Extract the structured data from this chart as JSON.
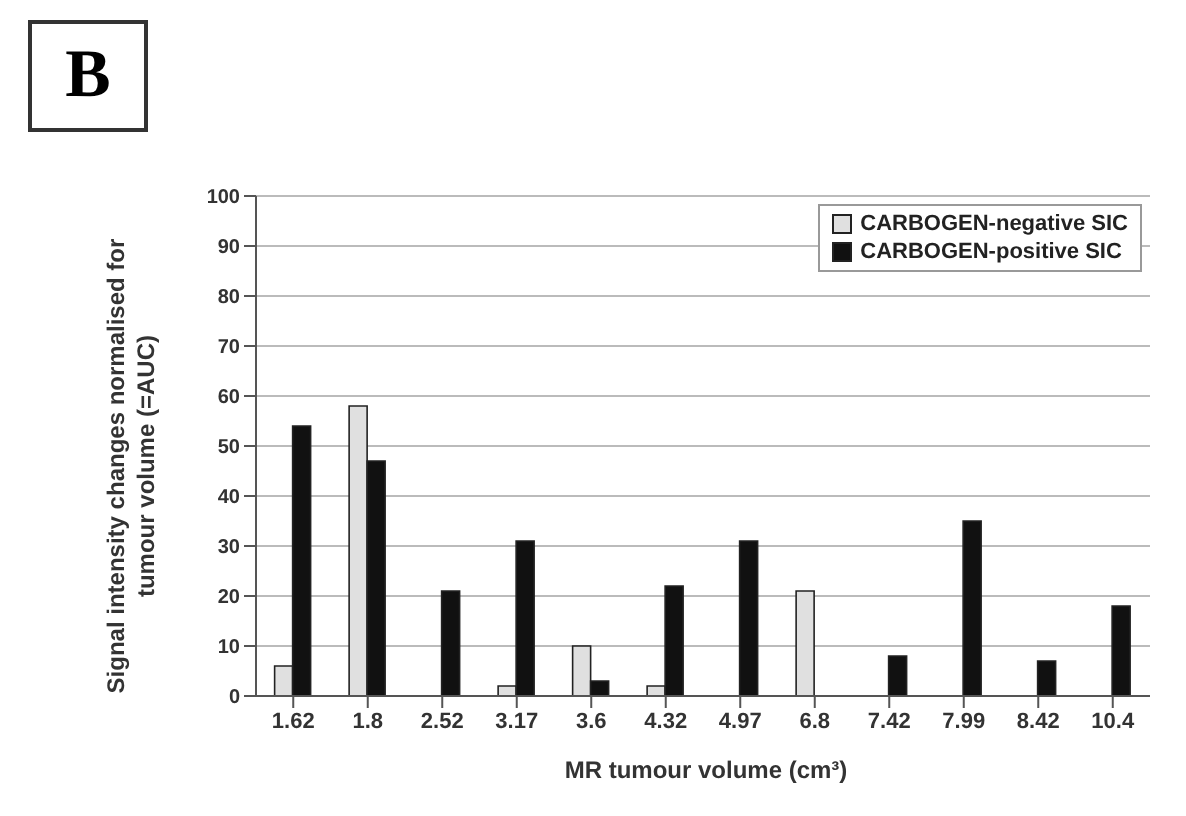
{
  "chart_data": {
    "type": "bar",
    "annotations": [
      "B"
    ],
    "xlabel": "MR tumour volume (cm³)",
    "ylabel": "Signal intensity changes normalised for tumour volume (=AUC)",
    "categories": [
      "1.62",
      "1.8",
      "2.52",
      "3.17",
      "3.6",
      "4.32",
      "4.97",
      "6.8",
      "7.42",
      "7.99",
      "8.42",
      "10.4"
    ],
    "series": [
      {
        "name": "CARBOGEN-negative SIC",
        "color": "#e0e0e0",
        "values": [
          6,
          58,
          0,
          2,
          10,
          2,
          0,
          21,
          0,
          0,
          0,
          0
        ]
      },
      {
        "name": "CARBOGEN-positive SIC",
        "color": "#111111",
        "values": [
          54,
          47,
          21,
          31,
          3,
          22,
          31,
          0,
          8,
          35,
          7,
          18
        ]
      }
    ],
    "ylim": [
      0,
      100
    ],
    "yticks": [
      0,
      10,
      20,
      30,
      40,
      50,
      60,
      70,
      80,
      90,
      100
    ],
    "grid": "y",
    "legend": "top right"
  }
}
